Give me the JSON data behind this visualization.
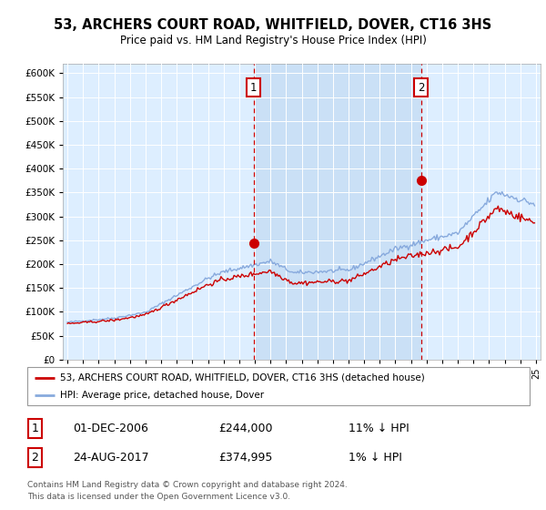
{
  "title": "53, ARCHERS COURT ROAD, WHITFIELD, DOVER, CT16 3HS",
  "subtitle": "Price paid vs. HM Land Registry's House Price Index (HPI)",
  "legend_line1": "53, ARCHERS COURT ROAD, WHITFIELD, DOVER, CT16 3HS (detached house)",
  "legend_line2": "HPI: Average price, detached house, Dover",
  "annotation1_date": "01-DEC-2006",
  "annotation1_price": "£244,000",
  "annotation1_hpi": "11% ↓ HPI",
  "annotation1_year": 2006.917,
  "annotation1_price_val": 244000,
  "annotation2_date": "24-AUG-2017",
  "annotation2_price": "£374,995",
  "annotation2_hpi": "1% ↓ HPI",
  "annotation2_year": 2017.642,
  "annotation2_price_val": 374995,
  "footer1": "Contains HM Land Registry data © Crown copyright and database right 2024.",
  "footer2": "This data is licensed under the Open Government Licence v3.0.",
  "ylim_min": 0,
  "ylim_max": 620000,
  "xlim_min": 1994.7,
  "xlim_max": 2025.3,
  "line_color_red": "#cc0000",
  "line_color_blue": "#88aadd",
  "bg_color": "#ddeeff",
  "highlight_color": "#c8dff5",
  "grid_color": "#ffffff",
  "annotation_box_color": "#cc0000",
  "vline_color": "#cc0000"
}
